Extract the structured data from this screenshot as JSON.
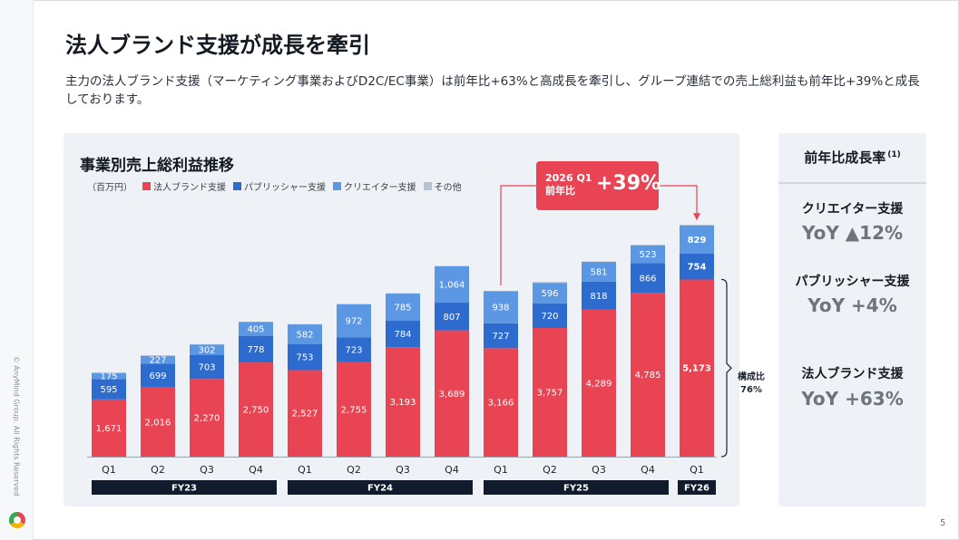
{
  "sidebar": {
    "copyright": "© AnyMind Group. All Rights Reserved"
  },
  "page": {
    "title": "法人ブランド支援が成長を牽引",
    "description": "主力の法人ブランド支援（マーケティング事業およびD2C/EC事業）は前年比+63%と高成長を牽引し、グループ連結での売上総利益も前年比+39%と成長しております。",
    "page_number": "5"
  },
  "callout": {
    "label": "2026 Q1 前年比",
    "value": "+39%"
  },
  "composition": {
    "label": "構成比",
    "value": "76%"
  },
  "yoy_panel": {
    "title": "前年比成長率",
    "note": "(1)",
    "items": [
      {
        "name": "クリエイター支援",
        "value": "YoY ▲12%"
      },
      {
        "name": "パブリッシャー支援",
        "value": "YoY +4%"
      },
      {
        "name": "法人ブランド支援",
        "value": "YoY +63%"
      }
    ]
  },
  "colors": {
    "corporate": "#e94453",
    "publisher": "#2d6bcf",
    "creator": "#5b97e3",
    "other": "#b9c3cf",
    "fy_bar": "#101b2d",
    "accent": "#e94453"
  },
  "chart_data": {
    "type": "bar",
    "stacked": true,
    "title": "事業別売上総利益推移",
    "unit": "（百万円）",
    "categories": [
      "Q1",
      "Q2",
      "Q3",
      "Q4",
      "Q1",
      "Q2",
      "Q3",
      "Q4",
      "Q1",
      "Q2",
      "Q3",
      "Q4",
      "Q1"
    ],
    "fiscal_years": [
      {
        "label": "FY23",
        "span": 4
      },
      {
        "label": "FY24",
        "span": 4
      },
      {
        "label": "FY25",
        "span": 4
      },
      {
        "label": "FY26",
        "span": 1
      }
    ],
    "series": [
      {
        "name": "法人ブランド支援",
        "color": "#e94453",
        "values": [
          1671,
          2016,
          2270,
          2750,
          2527,
          2755,
          3193,
          3689,
          3166,
          3757,
          4289,
          4785,
          5173
        ]
      },
      {
        "name": "パブリッシャー支援",
        "color": "#2d6bcf",
        "values": [
          595,
          699,
          703,
          778,
          753,
          723,
          784,
          807,
          727,
          720,
          818,
          866,
          754
        ]
      },
      {
        "name": "クリエイター支援",
        "color": "#5b97e3",
        "values": [
          175,
          227,
          302,
          405,
          582,
          972,
          785,
          1064,
          938,
          596,
          581,
          523,
          829
        ]
      },
      {
        "name": "その他",
        "color": "#b9c3cf",
        "values": [
          20,
          20,
          10,
          10,
          10,
          10,
          10,
          10,
          10,
          30,
          10,
          10,
          10
        ]
      }
    ],
    "ylim": [
      0,
      7000
    ],
    "grid": false,
    "legend": "top-left"
  }
}
